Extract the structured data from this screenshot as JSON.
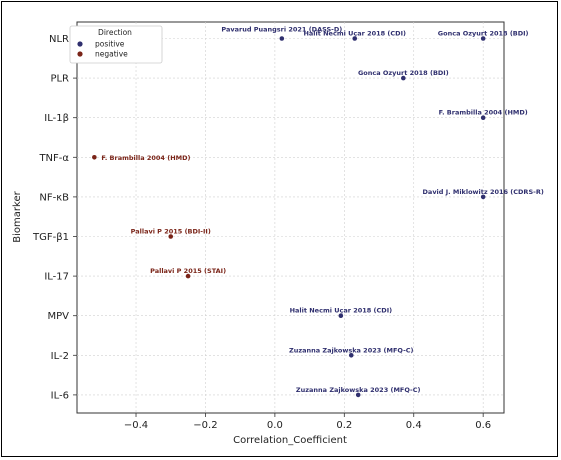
{
  "chart_data": {
    "type": "scatter",
    "title": "",
    "xlabel": "Correlation_Coefficient",
    "ylabel": "Biomarker",
    "xlim": [
      -0.57,
      0.66
    ],
    "xticks": [
      "−0.4",
      "−0.2",
      "0.0",
      "0.2",
      "0.4",
      "0.6"
    ],
    "xtick_values": [
      -0.4,
      -0.2,
      0.0,
      0.2,
      0.4,
      0.6
    ],
    "categories": [
      "NLR",
      "PLR",
      "IL-1β",
      "TNF-α",
      "NF-κB",
      "TGF-β1",
      "IL-17",
      "MPV",
      "IL-2",
      "IL-6"
    ],
    "grid": true,
    "legend": {
      "title": "Direction",
      "placement": "top-left",
      "entries": [
        {
          "label": "positive",
          "color": "#2f2f6e"
        },
        {
          "label": "negative",
          "color": "#7a2418"
        }
      ]
    },
    "points": [
      {
        "category": "NLR",
        "x": 0.02,
        "direction": "positive",
        "label": "Pavarud Puangsri 2021 (DASS-D)"
      },
      {
        "category": "NLR",
        "x": 0.23,
        "direction": "positive",
        "label": "Halit Necmi Uçar 2018 (CDI)"
      },
      {
        "category": "NLR",
        "x": 0.6,
        "direction": "positive",
        "label": "Gonca Ozyurt 2018 (BDI)"
      },
      {
        "category": "PLR",
        "x": 0.37,
        "direction": "positive",
        "label": "Gonca Ozyurt 2018 (BDI)"
      },
      {
        "category": "IL-1β",
        "x": 0.6,
        "direction": "positive",
        "label": "F. Brambilla 2004 (HMD)"
      },
      {
        "category": "TNF-α",
        "x": -0.52,
        "direction": "negative",
        "label": "F. Brambilla 2004 (HMD)"
      },
      {
        "category": "NF-κB",
        "x": 0.6,
        "direction": "positive",
        "label": "David J. Miklowitz 2016 (CDRS-R)"
      },
      {
        "category": "TGF-β1",
        "x": -0.3,
        "direction": "negative",
        "label": "Pallavi P 2015 (BDI-II)"
      },
      {
        "category": "IL-17",
        "x": -0.25,
        "direction": "negative",
        "label": "Pallavi P 2015 (STAI)"
      },
      {
        "category": "MPV",
        "x": 0.19,
        "direction": "positive",
        "label": "Halit Necmi Uçar 2018 (CDI)"
      },
      {
        "category": "IL-2",
        "x": 0.22,
        "direction": "positive",
        "label": "Zuzanna Zajkowska 2023 (MFQ-C)"
      },
      {
        "category": "IL-6",
        "x": 0.24,
        "direction": "positive",
        "label": "Zuzanna Zajkowska 2023 (MFQ-C)"
      }
    ]
  }
}
